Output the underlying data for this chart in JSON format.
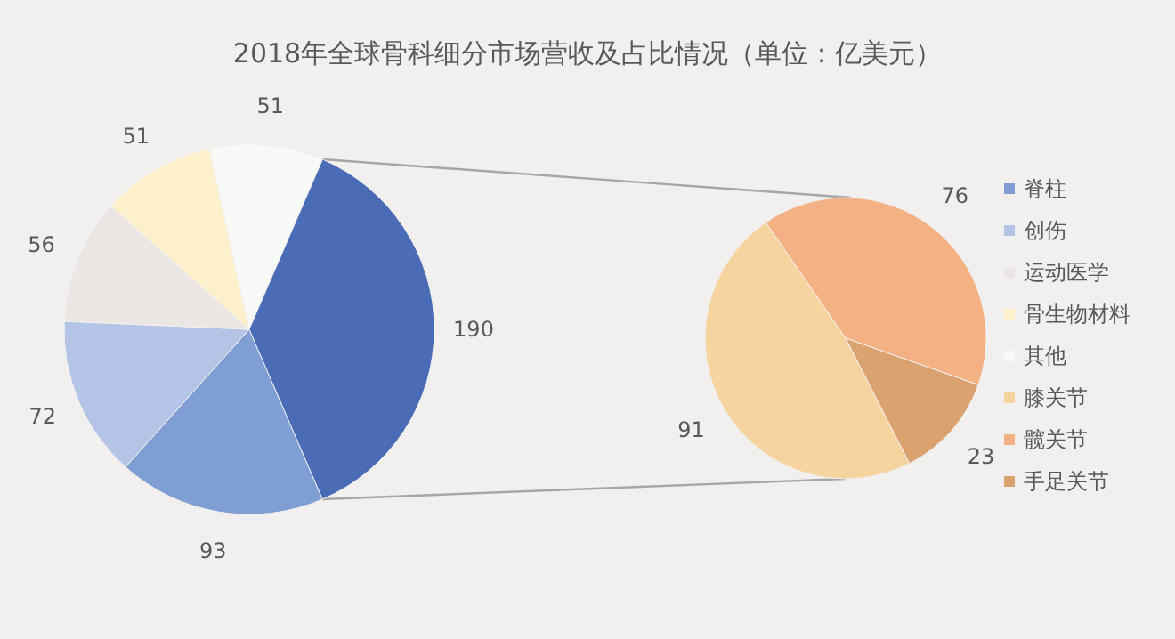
{
  "chart_data": [
    {
      "type": "pie",
      "title": "2018年全球骨科细分市场营收及占比情况（单位：亿美元）",
      "categories": [
        "脊柱",
        "创伤",
        "运动医学",
        "骨生物材料",
        "其他",
        null
      ],
      "values": [
        93,
        72,
        56,
        51,
        51,
        190
      ],
      "colors": [
        "#7f9fd4",
        "#b4c4e6",
        "#ebe6e4",
        "#fff0cc",
        "#f6f9f6",
        "#4a6bb5"
      ],
      "data_labels": true,
      "legend": "right"
    },
    {
      "type": "pie",
      "categories": [
        "膝关节",
        "髋关节",
        "手足关节"
      ],
      "values": [
        91,
        76,
        23
      ],
      "colors": [
        "#f5d4a0",
        "#f4b183",
        "#d9a26e"
      ],
      "data_labels": true,
      "legend": "right"
    }
  ]
}
